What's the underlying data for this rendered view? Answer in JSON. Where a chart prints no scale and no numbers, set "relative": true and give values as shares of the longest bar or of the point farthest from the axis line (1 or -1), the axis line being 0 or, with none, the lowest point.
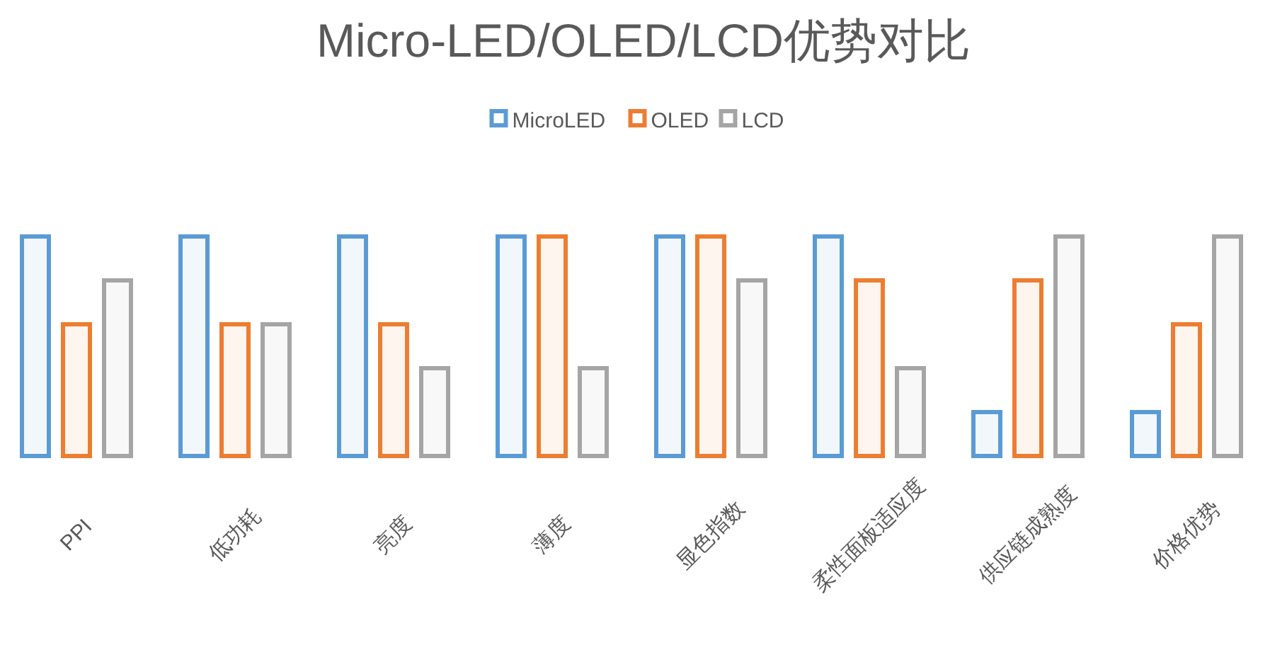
{
  "chart_data": {
    "type": "bar",
    "title": "Micro-LED/OLED/LCD优势对比",
    "relative": true,
    "legend": "top",
    "categories": [
      "PPI",
      "低功耗",
      "亮度",
      "薄度",
      "显色指数",
      "柔性面板适应度",
      "供应链成熟度",
      "价格优势"
    ],
    "series": [
      {
        "name": "MicroLED",
        "color": "#5b9bd5",
        "values": [
          1,
          1,
          1,
          1,
          1,
          1,
          0.2,
          0.2
        ]
      },
      {
        "name": "OLED",
        "color": "#ed7d31",
        "values": [
          0.6,
          0.6,
          0.6,
          1,
          1,
          0.8,
          0.8,
          0.6
        ]
      },
      {
        "name": "LCD",
        "color": "#a5a5a5",
        "values": [
          0.8,
          0.6,
          0.4,
          0.4,
          0.8,
          0.4,
          1,
          1
        ]
      }
    ]
  }
}
